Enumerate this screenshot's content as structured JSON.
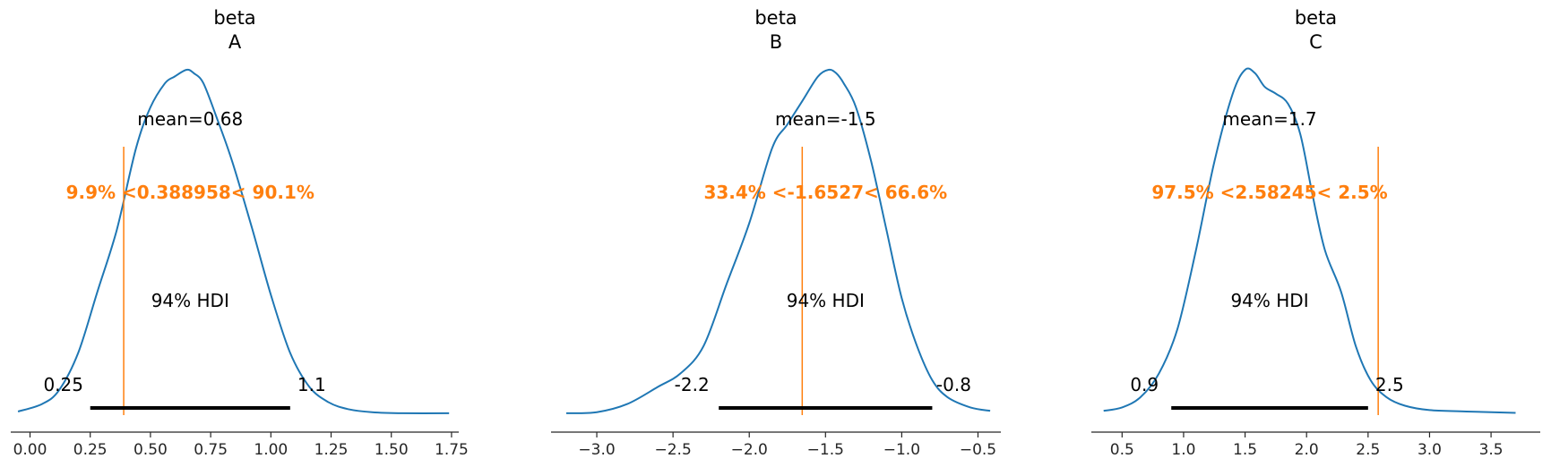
{
  "chart_data": [
    {
      "type": "area",
      "title_lines": [
        "beta",
        "A"
      ],
      "xlim": [
        -0.08,
        1.78
      ],
      "ylim": [
        0,
        1.06
      ],
      "xticks": [
        0.0,
        0.25,
        0.5,
        0.75,
        1.0,
        1.25,
        1.5,
        1.75
      ],
      "xtick_labels": [
        "0.00",
        "0.25",
        "0.50",
        "0.75",
        "1.00",
        "1.25",
        "1.50",
        "1.75"
      ],
      "kde": {
        "x": [
          -0.05,
          0.05,
          0.12,
          0.2,
          0.28,
          0.36,
          0.44,
          0.5,
          0.56,
          0.6,
          0.65,
          0.68,
          0.72,
          0.78,
          0.84,
          0.92,
          1.0,
          1.08,
          1.16,
          1.24,
          1.32,
          1.42,
          1.55,
          1.74
        ],
        "y": [
          0.008,
          0.03,
          0.07,
          0.18,
          0.36,
          0.54,
          0.78,
          0.9,
          0.97,
          0.99,
          1.01,
          1.0,
          0.97,
          0.86,
          0.74,
          0.55,
          0.35,
          0.18,
          0.08,
          0.035,
          0.015,
          0.006,
          0.003,
          0.003
        ]
      },
      "mean_label": "mean=0.68",
      "reference": {
        "value": 0.388958,
        "label": "9.9% <0.388958< 90.1%"
      },
      "hdi": {
        "label": "94% HDI",
        "low": 0.25,
        "high": 1.08,
        "low_label": "0.25",
        "high_label": "1.1"
      }
    },
    {
      "type": "area",
      "title_lines": [
        "beta",
        "B"
      ],
      "xlim": [
        -3.3,
        -0.35
      ],
      "ylim": [
        0,
        1.06
      ],
      "xticks": [
        -3.0,
        -2.5,
        -2.0,
        -1.5,
        -1.0,
        -0.5
      ],
      "xtick_labels": [
        "−3.0",
        "−2.5",
        "−2.0",
        "−1.5",
        "−1.0",
        "−0.5"
      ],
      "kde": {
        "x": [
          -3.2,
          -3.0,
          -2.8,
          -2.6,
          -2.45,
          -2.3,
          -2.15,
          -2.0,
          -1.85,
          -1.75,
          -1.65,
          -1.55,
          -1.48,
          -1.43,
          -1.38,
          -1.3,
          -1.2,
          -1.1,
          -1.0,
          -0.9,
          -0.8,
          -0.7,
          -0.55,
          -0.42
        ],
        "y": [
          0.003,
          0.006,
          0.03,
          0.08,
          0.12,
          0.2,
          0.38,
          0.56,
          0.78,
          0.85,
          0.92,
          0.99,
          1.01,
          1.0,
          0.97,
          0.9,
          0.74,
          0.54,
          0.34,
          0.2,
          0.1,
          0.05,
          0.02,
          0.01
        ]
      },
      "mean_label": "mean=-1.5",
      "reference": {
        "value": -1.6527,
        "label": "33.4% <-1.6527< 66.6%"
      },
      "hdi": {
        "label": "94% HDI",
        "low": -2.2,
        "high": -0.8,
        "low_label": "-2.2",
        "high_label": "-0.8"
      }
    },
    {
      "type": "area",
      "title_lines": [
        "beta",
        "C"
      ],
      "xlim": [
        0.25,
        3.9
      ],
      "ylim": [
        0,
        1.06
      ],
      "xticks": [
        0.5,
        1.0,
        1.5,
        2.0,
        2.5,
        3.0,
        3.5
      ],
      "xtick_labels": [
        "0.5",
        "1.0",
        "1.5",
        "2.0",
        "2.5",
        "3.0",
        "3.5"
      ],
      "kde": {
        "x": [
          0.35,
          0.5,
          0.65,
          0.8,
          0.95,
          1.1,
          1.25,
          1.4,
          1.5,
          1.58,
          1.66,
          1.75,
          1.85,
          1.95,
          2.05,
          2.15,
          2.28,
          2.4,
          2.52,
          2.65,
          2.8,
          3.0,
          3.3,
          3.7
        ],
        "y": [
          0.01,
          0.02,
          0.05,
          0.12,
          0.25,
          0.48,
          0.74,
          0.94,
          1.01,
          1.0,
          0.96,
          0.94,
          0.91,
          0.82,
          0.64,
          0.48,
          0.36,
          0.2,
          0.1,
          0.05,
          0.025,
          0.012,
          0.008,
          0.004
        ]
      },
      "mean_label": "mean=1.7",
      "reference": {
        "value": 2.58245,
        "label": "97.5% <2.58245< 2.5%"
      },
      "hdi": {
        "label": "94% HDI",
        "low": 0.9,
        "high": 2.5,
        "low_label": "0.9",
        "high_label": "2.5"
      }
    }
  ],
  "colors": {
    "kde": "#1f77b4",
    "reference": "#ff7f0e",
    "hdi": "#000000",
    "axis": "#262626"
  }
}
